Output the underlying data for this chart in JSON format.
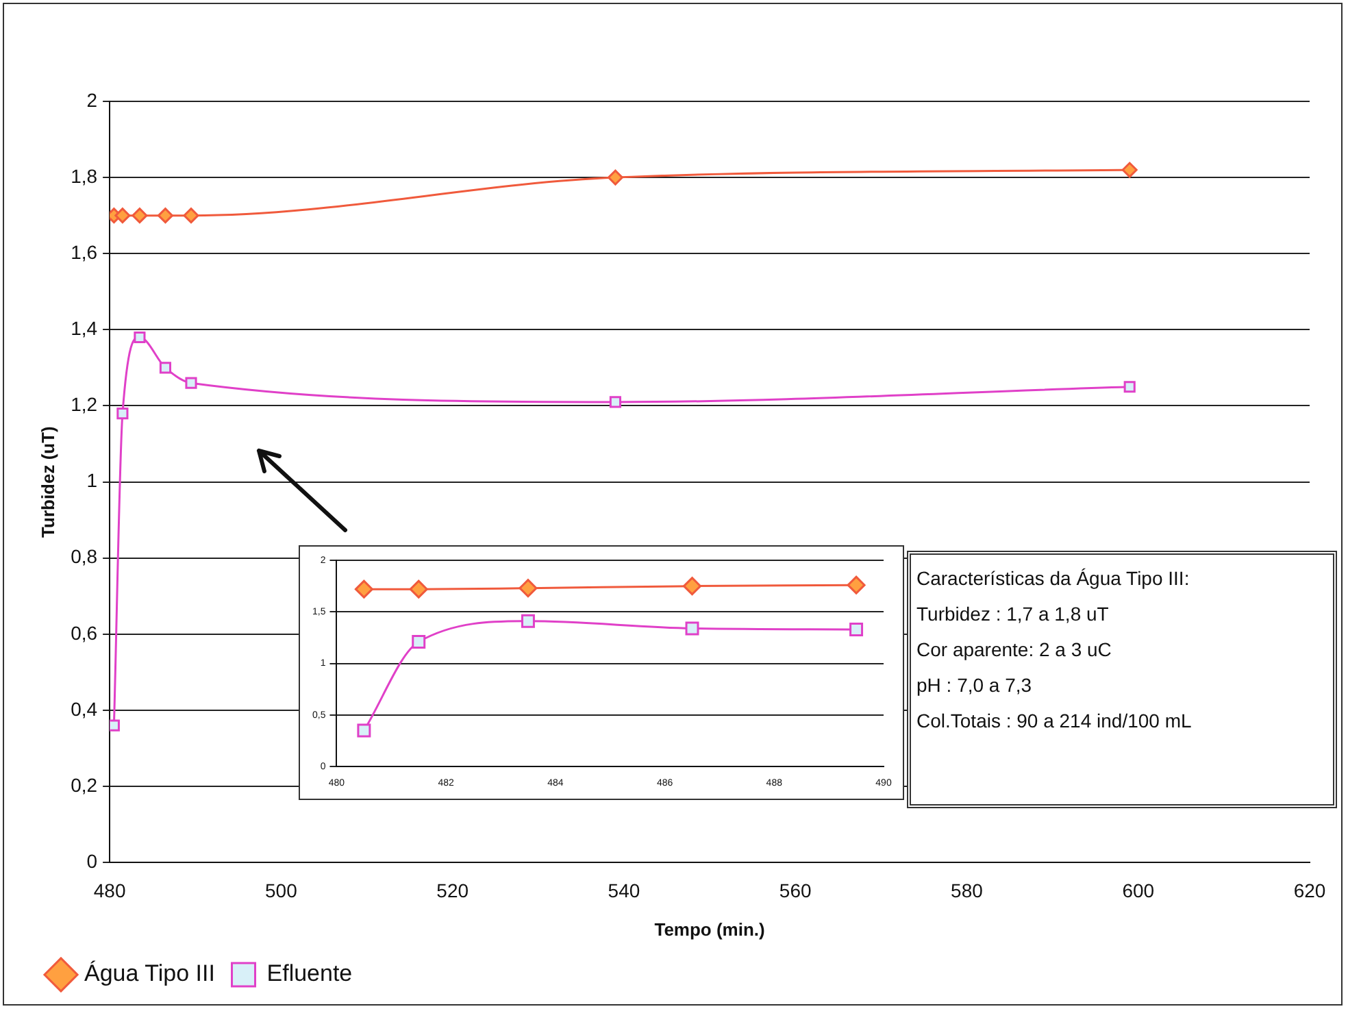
{
  "chart_data": [
    {
      "type": "line",
      "xlabel": "Tempo (min.)",
      "ylabel": "Turbidez (uT)",
      "x": [
        480.5,
        481.5,
        483.5,
        486.5,
        489.5,
        539,
        599
      ],
      "series": [
        {
          "name": "Água Tipo III",
          "color": "#f05a3c",
          "marker": "diamond",
          "values": [
            1.7,
            1.7,
            1.7,
            1.7,
            1.7,
            1.8,
            1.82
          ]
        },
        {
          "name": "Efluente",
          "color": "#e040c8",
          "marker": "square",
          "values": [
            0.36,
            1.18,
            1.38,
            1.3,
            1.26,
            1.21,
            1.25
          ]
        }
      ],
      "xlim": [
        480,
        620
      ],
      "xticks": [
        480,
        500,
        520,
        540,
        560,
        580,
        600,
        620
      ],
      "ylim": [
        0,
        2
      ],
      "yticks": [
        0,
        {
          "value": 0.2,
          "label": "0,2"
        },
        {
          "value": 0.4,
          "label": "0,4"
        },
        {
          "value": 0.6,
          "label": "0,6"
        },
        {
          "value": 0.8,
          "label": "0,8"
        },
        1,
        {
          "value": 1.2,
          "label": "1,2"
        },
        {
          "value": 1.4,
          "label": "1,4"
        },
        {
          "value": 1.6,
          "label": "1,6"
        },
        {
          "value": 1.8,
          "label": "1,8"
        },
        2
      ],
      "grid": "y",
      "legend": "bottom left",
      "annotations": [
        "Características da Água Tipo III:",
        "Turbidez : 1,7 a 1,8 uT",
        "Cor aparente: 2 a 3 uC",
        "pH : 7,0 a 7,3",
        "Col.Totais : 90 a 214 ind/100 mL"
      ]
    },
    {
      "type": "line",
      "x": [
        480.5,
        481.5,
        483.5,
        486.5,
        489.5
      ],
      "series": [
        {
          "color": "#f05a3c",
          "marker": "diamond",
          "values": [
            1.72,
            1.72,
            1.73,
            1.75,
            1.76
          ]
        },
        {
          "color": "#e040c8",
          "marker": "square",
          "values": [
            0.35,
            1.21,
            1.41,
            1.34,
            1.33
          ]
        }
      ],
      "xlim": [
        480,
        490
      ],
      "xticks": [
        480,
        482,
        484,
        486,
        488,
        490
      ],
      "ylim": [
        0,
        2
      ],
      "yticks": [
        0,
        {
          "value": 0.5,
          "label": "0,5"
        },
        1,
        {
          "value": 1.5,
          "label": "1,5"
        },
        2
      ],
      "grid": "y"
    }
  ]
}
